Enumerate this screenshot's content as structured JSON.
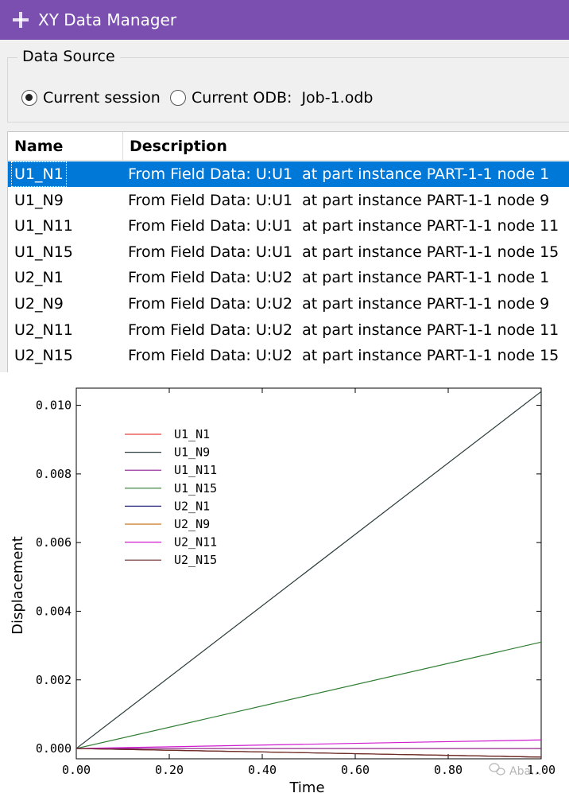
{
  "window": {
    "title": "XY Data Manager"
  },
  "data_source": {
    "legend": "Data Source",
    "options": [
      {
        "label": "Current session",
        "selected": true
      },
      {
        "label": "Current ODB:",
        "selected": false
      }
    ],
    "odb_name": "Job-1.odb"
  },
  "table": {
    "columns": [
      "Name",
      "Description"
    ],
    "rows": [
      {
        "name": "U1_N1",
        "source": "From Field Data: U:U1",
        "at": "at part instance PART-1-1 node 1",
        "selected": true
      },
      {
        "name": "U1_N9",
        "source": "From Field Data: U:U1",
        "at": "at part instance PART-1-1 node 9",
        "selected": false
      },
      {
        "name": "U1_N11",
        "source": "From Field Data: U:U1",
        "at": "at part instance PART-1-1 node 11",
        "selected": false
      },
      {
        "name": "U1_N15",
        "source": "From Field Data: U:U1",
        "at": "at part instance PART-1-1 node 15",
        "selected": false
      },
      {
        "name": "U2_N1",
        "source": "From Field Data: U:U2",
        "at": "at part instance PART-1-1 node 1",
        "selected": false
      },
      {
        "name": "U2_N9",
        "source": "From Field Data: U:U2",
        "at": "at part instance PART-1-1 node 9",
        "selected": false
      },
      {
        "name": "U2_N11",
        "source": "From Field Data: U:U2",
        "at": "at part instance PART-1-1 node 11",
        "selected": false
      },
      {
        "name": "U2_N15",
        "source": "From Field Data: U:U2",
        "at": "at part instance PART-1-1 node 15",
        "selected": false
      }
    ]
  },
  "colors": {
    "title_bar": "#7b4fb0",
    "selection": "#0078d7"
  },
  "chart_data": {
    "type": "line",
    "xlabel": "Time",
    "ylabel": "Displacement",
    "xlim": [
      0,
      1.0
    ],
    "ylim": [
      -0.0003,
      0.0105
    ],
    "x_ticks": [
      0,
      0.2,
      0.4,
      0.6,
      0.8,
      1.0
    ],
    "x_tick_labels": [
      "0.00",
      "0.20",
      "0.40",
      "0.60",
      "0.80",
      "1.00"
    ],
    "y_ticks": [
      0,
      0.002,
      0.004,
      0.006,
      0.008,
      0.01
    ],
    "y_tick_labels": [
      "0.000",
      "0.002",
      "0.004",
      "0.006",
      "0.008",
      "0.010"
    ],
    "grid": false,
    "legend_position": "top-left",
    "x": [
      0,
      1.0
    ],
    "series": [
      {
        "name": "U1_N1",
        "color": "#e8443a",
        "values": [
          0,
          0
        ]
      },
      {
        "name": "U1_N9",
        "color": "#2a3a3a",
        "values": [
          0,
          0.0104
        ]
      },
      {
        "name": "U1_N11",
        "color": "#8a1f8f",
        "values": [
          0,
          0
        ]
      },
      {
        "name": "U1_N15",
        "color": "#2e7d32",
        "values": [
          0,
          0.0031
        ]
      },
      {
        "name": "U2_N1",
        "color": "#26237a",
        "values": [
          0,
          -0.00025
        ]
      },
      {
        "name": "U2_N9",
        "color": "#c8781a",
        "values": [
          0,
          -0.00025
        ]
      },
      {
        "name": "U2_N11",
        "color": "#d01cd0",
        "values": [
          0,
          0.00025
        ]
      },
      {
        "name": "U2_N15",
        "color": "#6b2a2a",
        "values": [
          0,
          -0.00025
        ]
      }
    ]
  },
  "watermark": {
    "icon": "wechat-icon",
    "text": "Aba..."
  }
}
